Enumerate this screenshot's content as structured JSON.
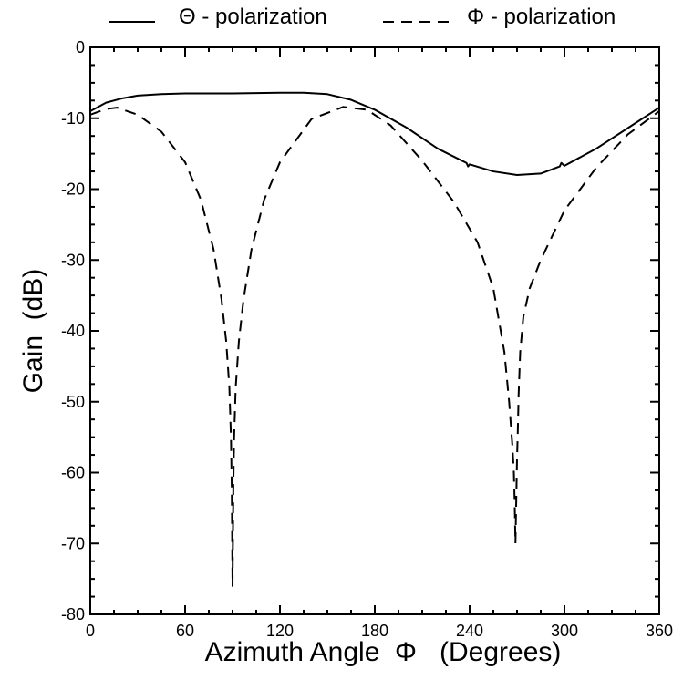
{
  "chart_data": {
    "type": "line",
    "title": "",
    "xlabel": "Azimuth Angle  Φ   (Degrees)",
    "ylabel": "Gain  (dB)",
    "xlim": [
      0,
      360
    ],
    "ylim": [
      -80,
      0
    ],
    "x_ticks": [
      0,
      60,
      120,
      180,
      240,
      300,
      360
    ],
    "y_ticks": [
      0,
      -10,
      -20,
      -30,
      -40,
      -50,
      -60,
      -70,
      -80
    ],
    "grid": false,
    "legend_position": "top",
    "series": [
      {
        "name": "Θ - polarization",
        "style": "solid",
        "color": "#000000",
        "x": [
          0,
          10,
          20,
          30,
          45,
          60,
          90,
          120,
          135,
          150,
          165,
          180,
          200,
          220,
          238,
          239,
          240,
          255,
          270,
          285,
          297,
          298,
          300,
          320,
          340,
          360
        ],
        "y": [
          -9,
          -7.8,
          -7.2,
          -6.8,
          -6.6,
          -6.5,
          -6.5,
          -6.4,
          -6.4,
          -6.6,
          -7.4,
          -8.8,
          -11.3,
          -14.3,
          -16.3,
          -16.8,
          -16.5,
          -17.5,
          -18,
          -17.8,
          -16.8,
          -16.3,
          -16.7,
          -14.3,
          -11.4,
          -8.5
        ]
      },
      {
        "name": "Φ - polarization",
        "style": "dashed",
        "color": "#000000",
        "x": [
          0,
          10,
          17,
          30,
          45,
          60,
          70,
          78,
          83,
          86,
          88,
          89,
          89.5,
          90,
          90.5,
          91,
          92,
          94,
          97,
          102,
          110,
          120,
          140,
          160,
          175,
          190,
          210,
          230,
          245,
          255,
          262,
          265,
          267,
          268,
          268.5,
          269,
          269.5,
          270,
          270.5,
          271,
          272,
          274,
          278,
          285,
          300,
          320,
          340,
          360
        ],
        "y": [
          -9.5,
          -8.7,
          -8.5,
          -9.5,
          -11.9,
          -16.2,
          -21.5,
          -28.5,
          -35.5,
          -41.5,
          -48,
          -55,
          -62,
          -76,
          -62,
          -55,
          -48,
          -41.5,
          -35.5,
          -28.5,
          -21.5,
          -16.2,
          -10.1,
          -8.4,
          -8.8,
          -11,
          -16,
          -21.8,
          -27.5,
          -34,
          -43,
          -50,
          -56,
          -60,
          -64,
          -70,
          -64,
          -58,
          -54,
          -49,
          -43,
          -38,
          -34,
          -30,
          -23,
          -17,
          -12.3,
          -9
        ]
      }
    ]
  }
}
